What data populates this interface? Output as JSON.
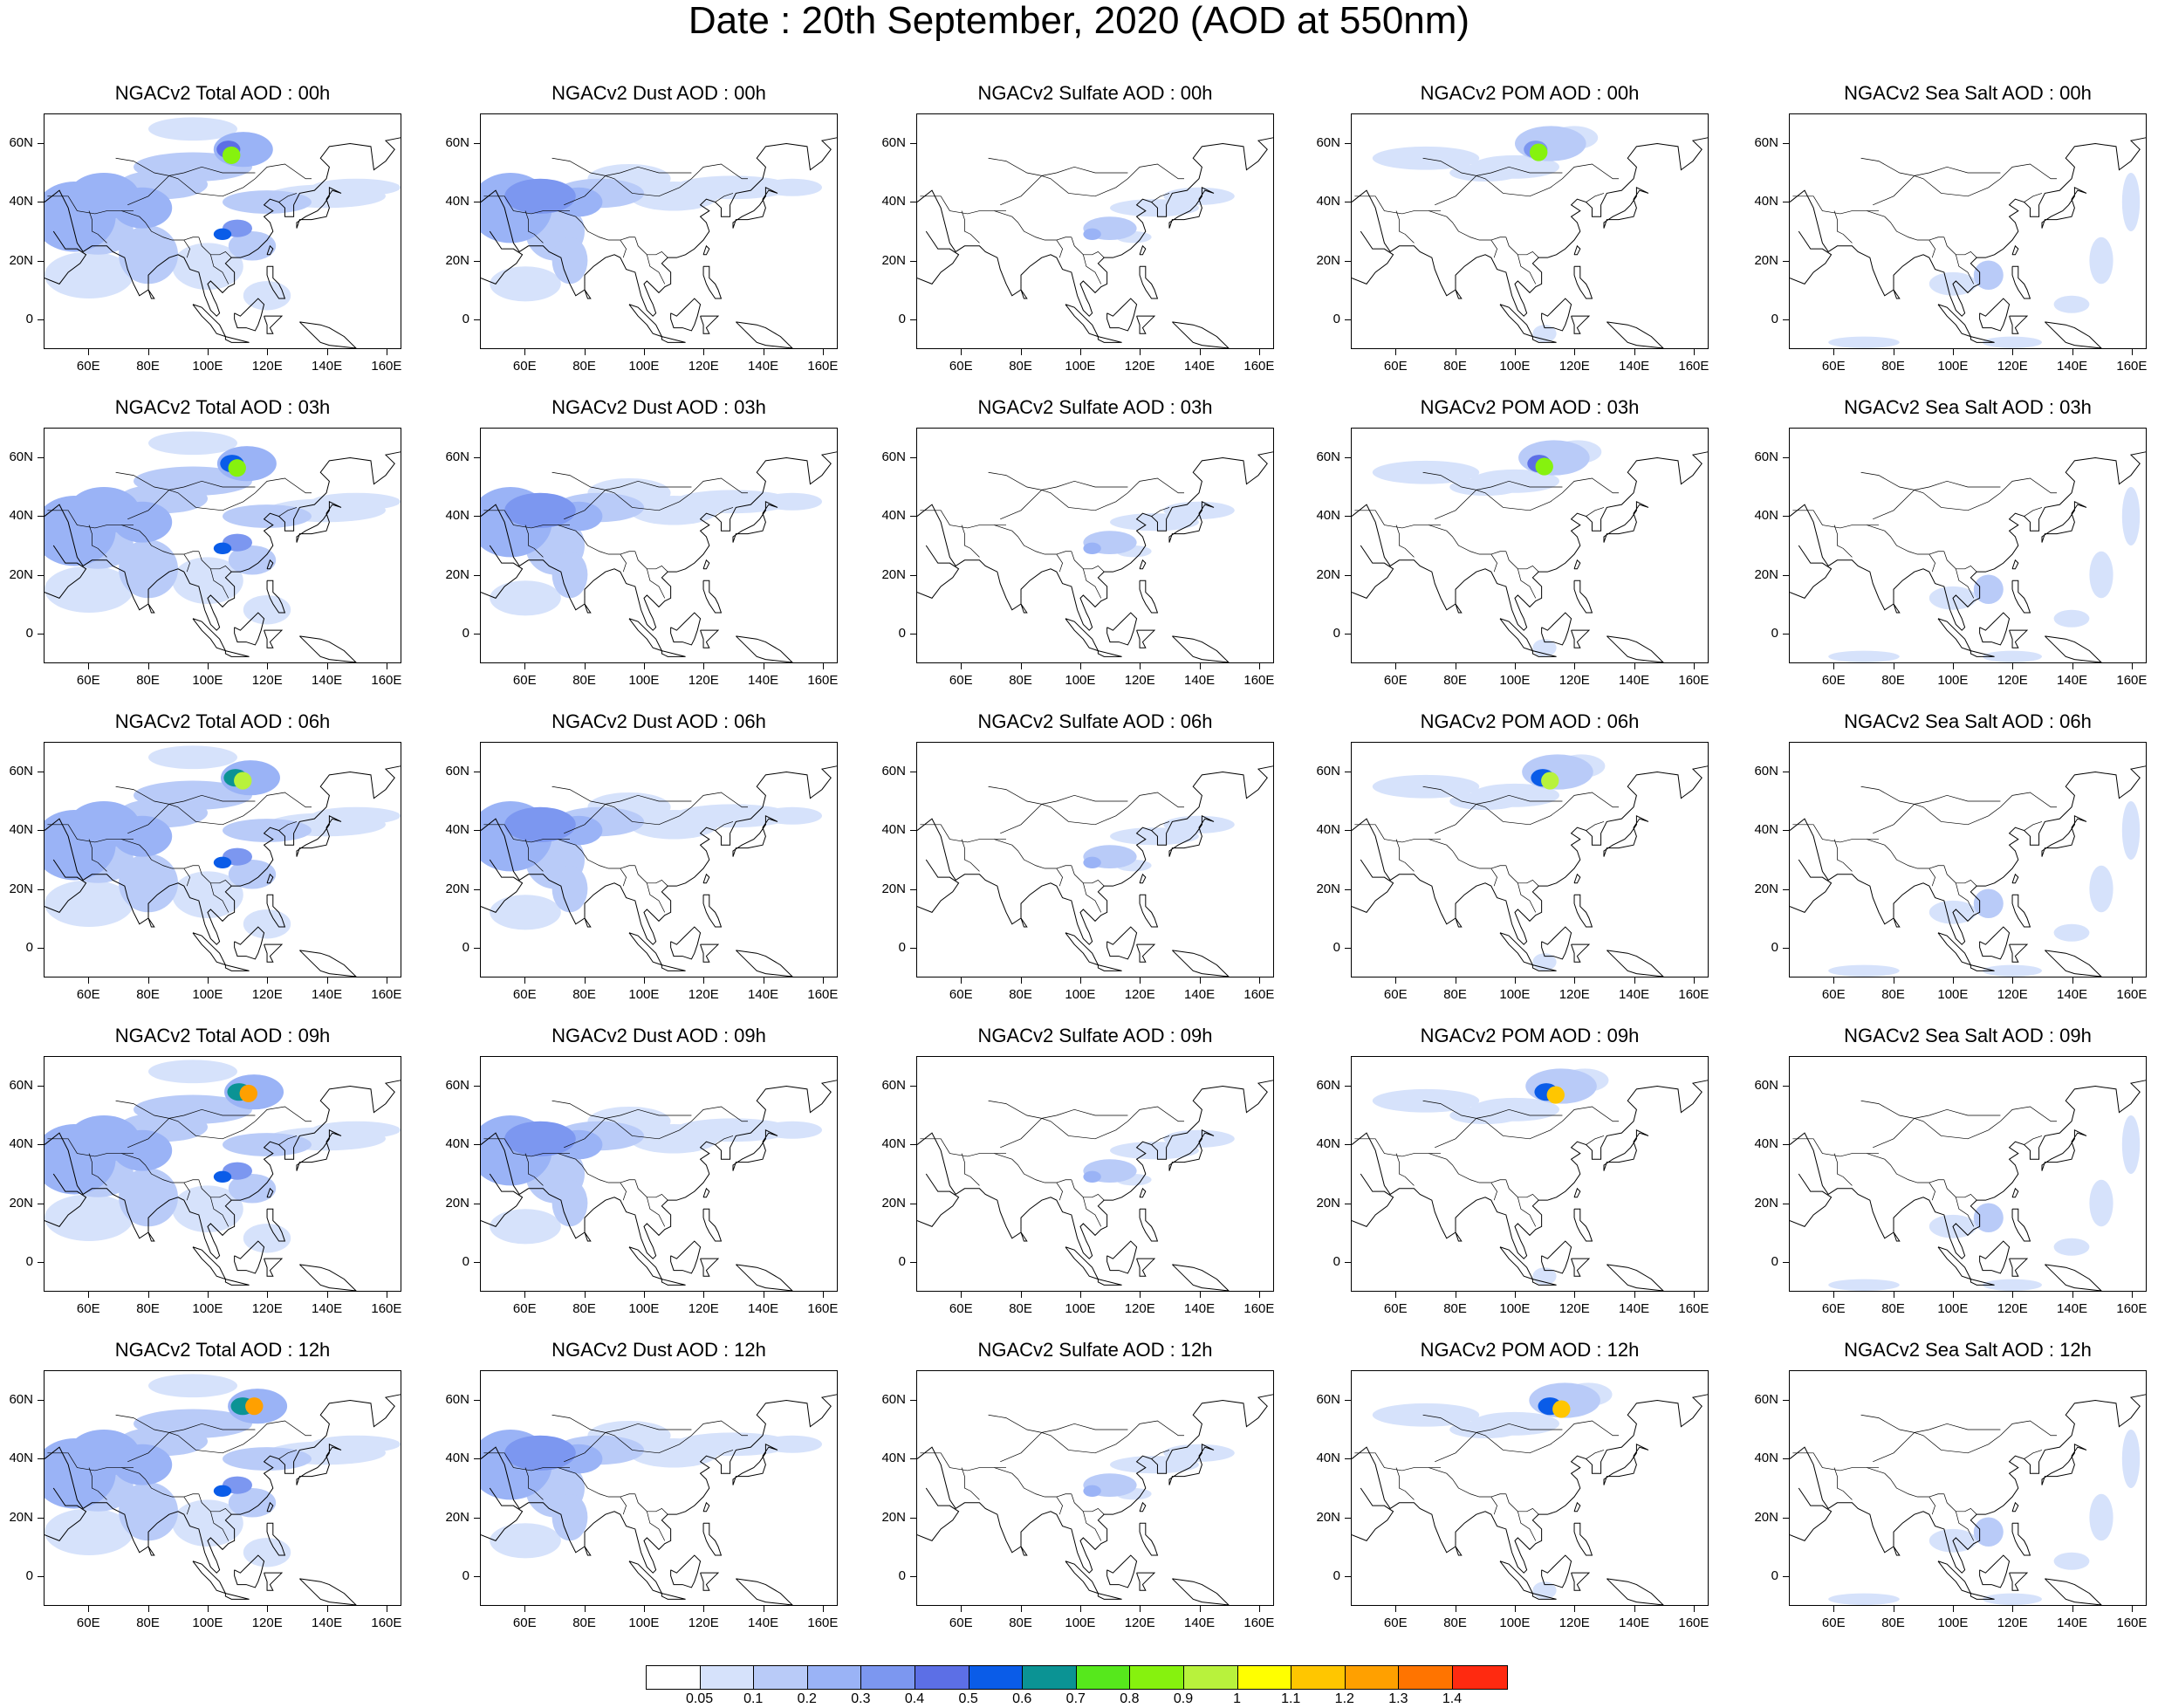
{
  "title": "Date : 20th September, 2020 (AOD at 550nm)",
  "lat_labels": [
    "60N",
    "40N",
    "20N",
    "0"
  ],
  "lon_labels": [
    "60E",
    "80E",
    "100E",
    "120E",
    "140E",
    "160E"
  ],
  "columns": [
    {
      "key": "total",
      "titles": [
        "NGACv2 Total AOD : 00h",
        "NGACv2 Total AOD : 03h",
        "NGACv2 Total AOD : 06h",
        "NGACv2 Total AOD : 09h",
        "NGACv2 Total AOD  : 12h"
      ]
    },
    {
      "key": "dust",
      "titles": [
        "NGACv2 Dust AOD : 00h",
        "NGACv2 Dust AOD : 03h",
        "NGACv2 Dust AOD : 06h",
        "NGACv2 Dust AOD : 09h",
        "NGACv2 Dust AOD : 12h"
      ]
    },
    {
      "key": "sulfate",
      "titles": [
        "NGACv2 Sulfate AOD : 00h",
        "NGACv2 Sulfate AOD : 03h",
        "NGACv2 Sulfate AOD : 06h",
        "NGACv2 Sulfate AOD : 09h",
        "NGACv2 Sulfate AOD : 12h"
      ]
    },
    {
      "key": "pom",
      "titles": [
        "NGACv2 POM AOD : 00h",
        "NGACv2 POM AOD : 03h",
        "NGACv2 POM AOD : 06h",
        "NGACv2 POM AOD : 09h",
        "NGACv2 POM  AOD : 12h"
      ]
    },
    {
      "key": "seasalt",
      "titles": [
        "NGACv2 Sea Salt AOD : 00h",
        "NGACv2 Sea Salt AOD : 03h",
        "NGACv2 Sea Salt AOD : 06h",
        "NGACv2 Sea Salt  AOD : 09h",
        "NGACv2 Sea Salt  AOD : 12h"
      ]
    }
  ],
  "colorbar": {
    "colors": [
      "#ffffff",
      "#d6e2fb",
      "#b9cbf8",
      "#9ab3f6",
      "#7c97f0",
      "#5c6fe6",
      "#0a5ce8",
      "#0b9394",
      "#56e81c",
      "#86f20e",
      "#b8f23c",
      "#ffff00",
      "#ffc600",
      "#ffa000",
      "#ff7400",
      "#ff2a10"
    ],
    "labels": [
      "0.05",
      "0.1",
      "0.2",
      "0.3",
      "0.4",
      "0.5",
      "0.6",
      "0.7",
      "0.8",
      "0.9",
      "1",
      "1.1",
      "1.2",
      "1.3",
      "1.4"
    ]
  }
}
